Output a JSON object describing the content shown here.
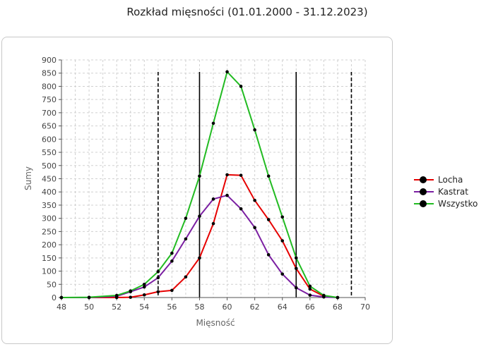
{
  "chart_data": {
    "type": "line",
    "title": "Rozkład mięsności (01.01.2000 - 31.12.2023)",
    "xlabel": "Mięsność",
    "ylabel": "Sumy",
    "xlim": [
      48,
      70
    ],
    "ylim": [
      0,
      900
    ],
    "xticks": [
      48,
      50,
      52,
      54,
      56,
      58,
      60,
      62,
      64,
      66,
      68,
      70
    ],
    "yticks": [
      0,
      50,
      100,
      150,
      200,
      250,
      300,
      350,
      400,
      450,
      500,
      550,
      600,
      650,
      700,
      750,
      800,
      850,
      900
    ],
    "grid": true,
    "legend_position": "right",
    "vlines": [
      {
        "x": 55,
        "style": "dashed"
      },
      {
        "x": 58,
        "style": "solid"
      },
      {
        "x": 65,
        "style": "solid"
      },
      {
        "x": 69,
        "style": "dashed"
      }
    ],
    "series": [
      {
        "name": "Locha",
        "color": "#e60000",
        "x": [
          48,
          50,
          52,
          53,
          54,
          55,
          56,
          57,
          58,
          59,
          60,
          61,
          62,
          63,
          64,
          65,
          66,
          67,
          68
        ],
        "y": [
          0,
          0,
          0,
          1,
          10,
          22,
          27,
          78,
          150,
          280,
          465,
          463,
          368,
          295,
          215,
          110,
          32,
          5,
          0
        ]
      },
      {
        "name": "Kastrat",
        "color": "#7b1fa2",
        "x": [
          48,
          50,
          52,
          53,
          54,
          55,
          56,
          57,
          58,
          59,
          60,
          61,
          62,
          63,
          64,
          65,
          66,
          67,
          68
        ],
        "y": [
          0,
          0,
          5,
          22,
          40,
          75,
          138,
          222,
          308,
          373,
          387,
          336,
          265,
          162,
          89,
          37,
          9,
          2,
          0
        ]
      },
      {
        "name": "Wszystko",
        "color": "#22bb22",
        "x": [
          48,
          50,
          52,
          53,
          54,
          55,
          56,
          57,
          58,
          59,
          60,
          61,
          62,
          63,
          64,
          65,
          66,
          67,
          68
        ],
        "y": [
          0,
          1,
          8,
          25,
          50,
          98,
          168,
          300,
          460,
          660,
          855,
          800,
          635,
          460,
          305,
          150,
          43,
          8,
          0
        ]
      }
    ]
  }
}
